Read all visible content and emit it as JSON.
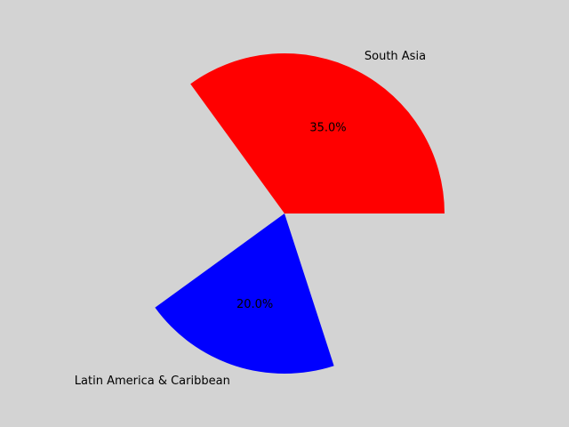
{
  "chart_data": {
    "type": "pie",
    "slices": [
      {
        "label": "South Asia",
        "value": 35.0,
        "pct_label": "35.0%",
        "color": "#ff0000"
      },
      {
        "label": "Latin America & Caribbean",
        "value": 20.0,
        "pct_label": "20.0%",
        "color": "#0000ff"
      }
    ],
    "background": "#d3d3d3",
    "legend": "none",
    "grid": false
  }
}
